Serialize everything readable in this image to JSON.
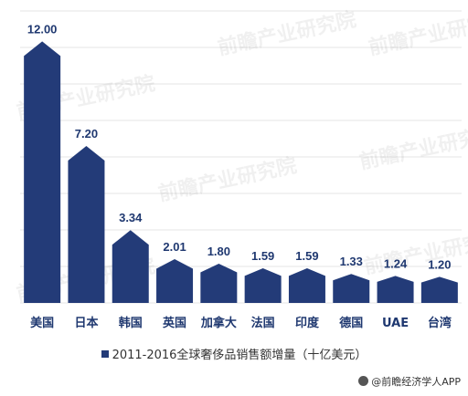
{
  "chart_data": {
    "type": "bar",
    "categories": [
      "美国",
      "日本",
      "韩国",
      "英国",
      "加拿大",
      "法国",
      "印度",
      "德国",
      "UAE",
      "台湾"
    ],
    "series": [
      {
        "name": "2011-2016全球奢侈品销售额增量（十亿美元）",
        "values": [
          12.0,
          7.2,
          3.34,
          2.01,
          1.8,
          1.59,
          1.59,
          1.33,
          1.24,
          1.2
        ],
        "labels": [
          "12.00",
          "7.20",
          "3.34",
          "2.01",
          "1.80",
          "1.59",
          "1.59",
          "1.33",
          "1.24",
          "1.20"
        ]
      }
    ],
    "ylim": [
      0,
      13.4
    ],
    "grid": true,
    "legend_position": "bottom",
    "colors": {
      "bar": "#233b78",
      "grid": "#e6e6e6",
      "label": "#1f3870"
    }
  },
  "legend": {
    "label": "2011-2016全球奢侈品销售额增量（十亿美元）"
  },
  "watermark": {
    "text": "前瞻产业研究院"
  },
  "footer": {
    "text": "@前瞻经济学人APP"
  }
}
